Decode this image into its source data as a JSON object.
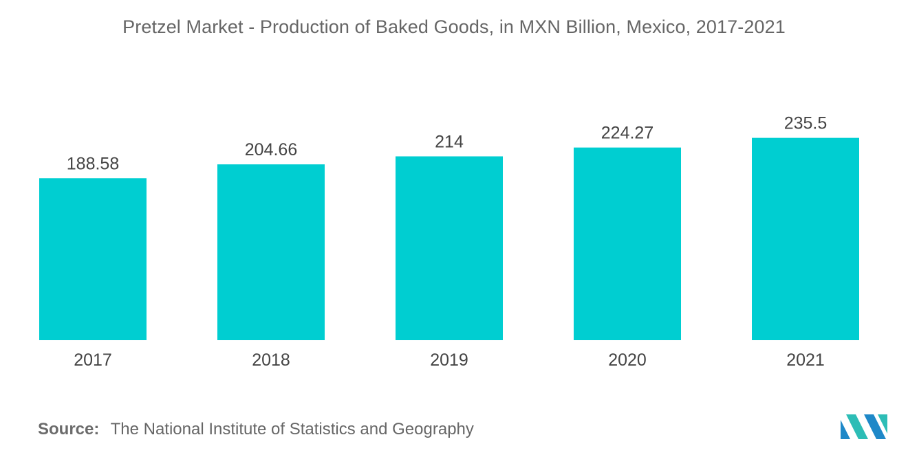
{
  "chart_data": {
    "type": "bar",
    "title": "Pretzel Market - Production of Baked Goods, in MXN Billion, Mexico, 2017-2021",
    "categories": [
      "2017",
      "2018",
      "2019",
      "2020",
      "2021"
    ],
    "values": [
      188.58,
      204.66,
      214,
      224.27,
      235.5
    ],
    "value_labels": [
      "188.58",
      "204.66",
      "214",
      "224.27",
      "235.5"
    ],
    "xlabel": "",
    "ylabel": "",
    "grid": false,
    "legend": "none",
    "bar_color": "#00CED1"
  },
  "footer": {
    "source_label": "Source:",
    "source_text": "The National Institute of Statistics and Geography"
  },
  "logo": {
    "icon": "mordor-intelligence-logo-icon",
    "colors": [
      "#1E88C8",
      "#2DBDB6"
    ]
  }
}
